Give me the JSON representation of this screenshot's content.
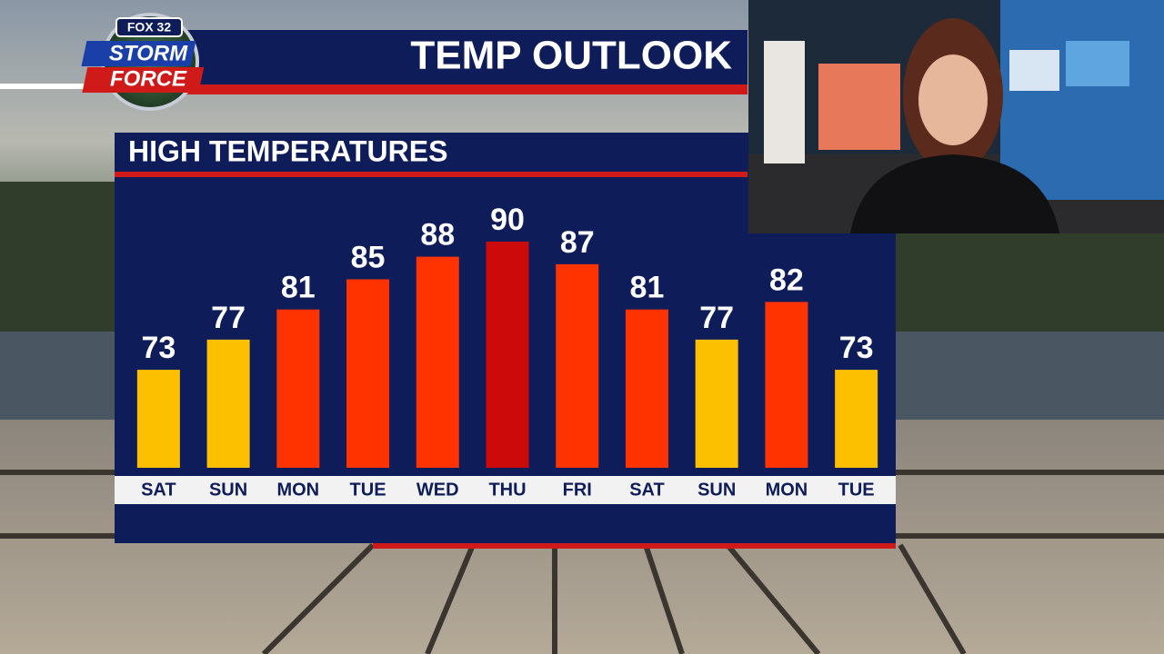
{
  "logo": {
    "network": "FOX 32",
    "line1": "STORM",
    "line2": "FORCE"
  },
  "chart_data": {
    "type": "bar",
    "title": "TEMP OUTLOOK",
    "subtitle": "HIGH TEMPERATURES",
    "categories": [
      "SAT",
      "SUN",
      "MON",
      "TUE",
      "WED",
      "THU",
      "FRI",
      "SAT",
      "SUN",
      "MON",
      "TUE"
    ],
    "values": [
      73,
      77,
      81,
      85,
      88,
      90,
      87,
      81,
      77,
      82,
      73
    ],
    "colors": [
      "#fcc000",
      "#fcc000",
      "#ff3300",
      "#ff3300",
      "#ff3300",
      "#cc0a0a",
      "#ff3300",
      "#ff3300",
      "#fcc000",
      "#ff3300",
      "#fcc000"
    ],
    "ylim": [
      60,
      90
    ]
  }
}
